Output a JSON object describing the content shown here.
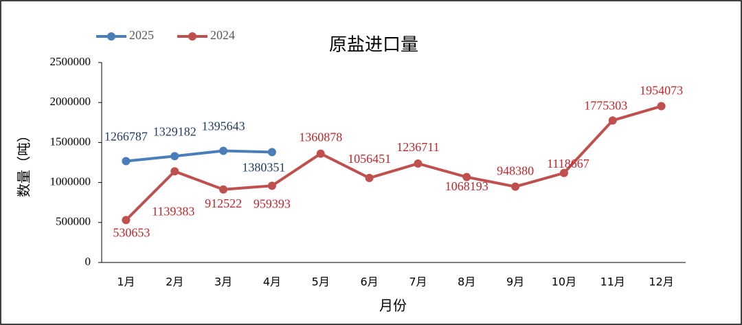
{
  "chart_data": {
    "type": "line",
    "title": "原盐进口量",
    "xlabel": "月份",
    "ylabel": "数量（吨）",
    "categories": [
      "1月",
      "2月",
      "3月",
      "4月",
      "5月",
      "6月",
      "7月",
      "8月",
      "9月",
      "10月",
      "11月",
      "12月"
    ],
    "series": [
      {
        "name": "2025",
        "color": "#4a7ebb",
        "label_color": "#1f3a5f",
        "values": [
          1266787,
          1329182,
          1395643,
          1380351,
          null,
          null,
          null,
          null,
          null,
          null,
          null,
          null
        ]
      },
      {
        "name": "2024",
        "color": "#c0504d",
        "label_color": "#c0262b",
        "values": [
          530653,
          1139383,
          912522,
          959393,
          1360878,
          1056451,
          1236711,
          1068193,
          948380,
          1118667,
          1775303,
          1954073
        ]
      }
    ],
    "ylim": [
      0,
      2500000
    ],
    "yticks": [
      0,
      500000,
      1000000,
      1500000,
      2000000,
      2500000
    ],
    "legend": "top-left"
  }
}
